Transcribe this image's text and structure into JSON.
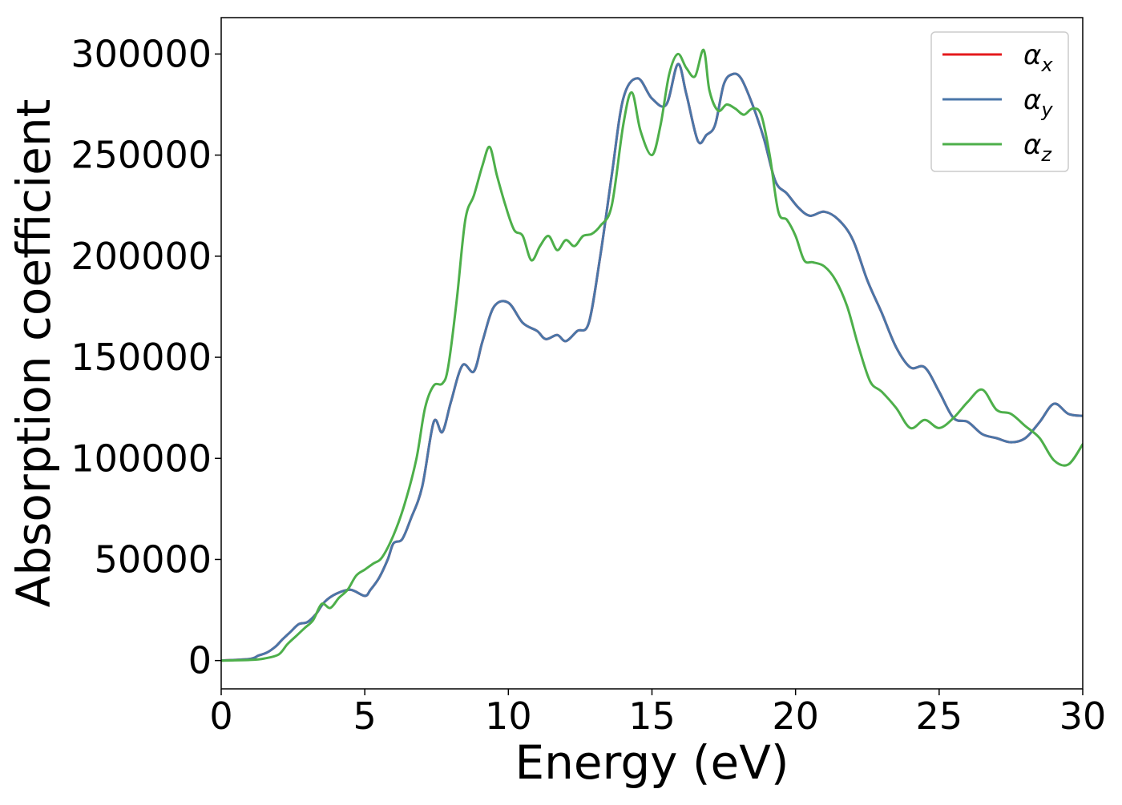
{
  "chart_data": {
    "type": "line",
    "xlabel": "Energy (eV)",
    "ylabel": "Absorption coefficient",
    "xlim": [
      0,
      30
    ],
    "ylim": [
      -14000,
      318000
    ],
    "xticks": [
      0,
      5,
      10,
      15,
      20,
      25,
      30
    ],
    "xtick_labels": [
      "0",
      "5",
      "10",
      "15",
      "20",
      "25",
      "30"
    ],
    "yticks": [
      0,
      50000,
      100000,
      150000,
      200000,
      250000,
      300000
    ],
    "ytick_labels": [
      "0",
      "50000",
      "100000",
      "150000",
      "200000",
      "250000",
      "300000"
    ],
    "grid": false,
    "legend_position": "top-right",
    "series": [
      {
        "name": "α_x",
        "legend_base": "α",
        "legend_sub": "x",
        "color": "#e41a1c",
        "x": [
          0,
          1,
          1.3,
          1.6,
          1.9,
          2.1,
          2.4,
          2.7,
          3.0,
          3.3,
          3.6,
          4.0,
          4.5,
          5.0,
          5.2,
          5.5,
          5.8,
          6.0,
          6.3,
          6.6,
          7.0,
          7.4,
          7.7,
          8.0,
          8.4,
          8.8,
          9.1,
          9.5,
          10.0,
          10.5,
          11.0,
          11.3,
          11.7,
          12.0,
          12.4,
          12.8,
          13.2,
          13.6,
          14.0,
          14.5,
          15.0,
          15.5,
          15.9,
          16.2,
          16.6,
          16.9,
          17.2,
          17.5,
          17.8,
          18.1,
          18.5,
          18.9,
          19.3,
          19.7,
          20.1,
          20.5,
          21.0,
          21.5,
          22.0,
          22.5,
          23.0,
          23.5,
          24.0,
          24.5,
          25.0,
          25.5,
          26.0,
          26.5,
          27.0,
          27.5,
          28.0,
          28.5,
          29.0,
          29.5,
          30.0
        ],
        "y": [
          0,
          800,
          2500,
          4000,
          7000,
          10000,
          14000,
          18000,
          19000,
          23000,
          29000,
          33000,
          35000,
          32000,
          35000,
          41000,
          50000,
          58000,
          60000,
          70000,
          86000,
          118000,
          113000,
          128000,
          146000,
          143000,
          158000,
          175000,
          177000,
          167000,
          163000,
          159000,
          161000,
          158000,
          163000,
          167000,
          200000,
          240000,
          278000,
          288000,
          278000,
          275000,
          295000,
          280000,
          257000,
          260000,
          265000,
          285000,
          290000,
          288000,
          275000,
          258000,
          237000,
          231000,
          224000,
          220000,
          222000,
          218000,
          208000,
          188000,
          172000,
          155000,
          145000,
          145000,
          133000,
          120000,
          118000,
          112000,
          110000,
          108000,
          110000,
          118000,
          127000,
          122000,
          121000
        ]
      },
      {
        "name": "α_y",
        "legend_base": "α",
        "legend_sub": "y",
        "color": "#4a76a8",
        "x": [
          0,
          1,
          1.3,
          1.6,
          1.9,
          2.1,
          2.4,
          2.7,
          3.0,
          3.3,
          3.6,
          4.0,
          4.5,
          5.0,
          5.2,
          5.5,
          5.8,
          6.0,
          6.3,
          6.6,
          7.0,
          7.4,
          7.7,
          8.0,
          8.4,
          8.8,
          9.1,
          9.5,
          10.0,
          10.5,
          11.0,
          11.3,
          11.7,
          12.0,
          12.4,
          12.8,
          13.2,
          13.6,
          14.0,
          14.5,
          15.0,
          15.5,
          15.9,
          16.2,
          16.6,
          16.9,
          17.2,
          17.5,
          17.8,
          18.1,
          18.5,
          18.9,
          19.3,
          19.7,
          20.1,
          20.5,
          21.0,
          21.5,
          22.0,
          22.5,
          23.0,
          23.5,
          24.0,
          24.5,
          25.0,
          25.5,
          26.0,
          26.5,
          27.0,
          27.5,
          28.0,
          28.5,
          29.0,
          29.5,
          30.0
        ],
        "y": [
          0,
          800,
          2500,
          4000,
          7000,
          10000,
          14000,
          18000,
          19000,
          23000,
          29000,
          33000,
          35000,
          32000,
          35000,
          41000,
          50000,
          58000,
          60000,
          70000,
          86000,
          118000,
          113000,
          128000,
          146000,
          143000,
          158000,
          175000,
          177000,
          167000,
          163000,
          159000,
          161000,
          158000,
          163000,
          167000,
          200000,
          240000,
          278000,
          288000,
          278000,
          275000,
          295000,
          280000,
          257000,
          260000,
          265000,
          285000,
          290000,
          288000,
          275000,
          258000,
          237000,
          231000,
          224000,
          220000,
          222000,
          218000,
          208000,
          188000,
          172000,
          155000,
          145000,
          145000,
          133000,
          120000,
          118000,
          112000,
          110000,
          108000,
          110000,
          118000,
          127000,
          122000,
          121000
        ]
      },
      {
        "name": "α_z",
        "legend_base": "α",
        "legend_sub": "z",
        "color": "#4daf4a",
        "x": [
          0,
          1,
          1.5,
          2.0,
          2.3,
          2.6,
          2.9,
          3.2,
          3.5,
          3.8,
          4.1,
          4.4,
          4.7,
          5.0,
          5.3,
          5.6,
          6.0,
          6.4,
          6.8,
          7.1,
          7.4,
          7.7,
          7.9,
          8.2,
          8.5,
          8.8,
          9.1,
          9.35,
          9.6,
          9.9,
          10.2,
          10.5,
          10.8,
          11.1,
          11.4,
          11.7,
          12.0,
          12.3,
          12.6,
          12.9,
          13.2,
          13.6,
          14.0,
          14.3,
          14.6,
          15.0,
          15.3,
          15.6,
          15.9,
          16.2,
          16.5,
          16.8,
          17.0,
          17.3,
          17.6,
          17.9,
          18.2,
          18.5,
          18.8,
          19.1,
          19.4,
          19.7,
          20.0,
          20.3,
          20.6,
          21.0,
          21.4,
          21.8,
          22.2,
          22.6,
          23.0,
          23.5,
          24.0,
          24.5,
          25.0,
          25.5,
          26.0,
          26.5,
          27.0,
          27.5,
          28.0,
          28.5,
          29.0,
          29.5,
          30.0
        ],
        "y": [
          0,
          300,
          1000,
          3000,
          8000,
          12000,
          16000,
          20000,
          28000,
          26000,
          31000,
          35000,
          42000,
          45000,
          48000,
          51000,
          62000,
          78000,
          100000,
          125000,
          136000,
          137000,
          145000,
          178000,
          218000,
          230000,
          245000,
          254000,
          240000,
          225000,
          213000,
          210000,
          198000,
          205000,
          210000,
          203000,
          208000,
          205000,
          210000,
          211000,
          215000,
          225000,
          265000,
          281000,
          262000,
          250000,
          265000,
          290000,
          300000,
          293000,
          289000,
          302000,
          282000,
          272000,
          275000,
          273000,
          270000,
          273000,
          270000,
          250000,
          222000,
          218000,
          210000,
          198000,
          197000,
          195000,
          188000,
          175000,
          155000,
          138000,
          133000,
          125000,
          115000,
          119000,
          115000,
          120000,
          128000,
          134000,
          124000,
          122000,
          116000,
          110000,
          99000,
          97000,
          107000
        ]
      }
    ]
  }
}
